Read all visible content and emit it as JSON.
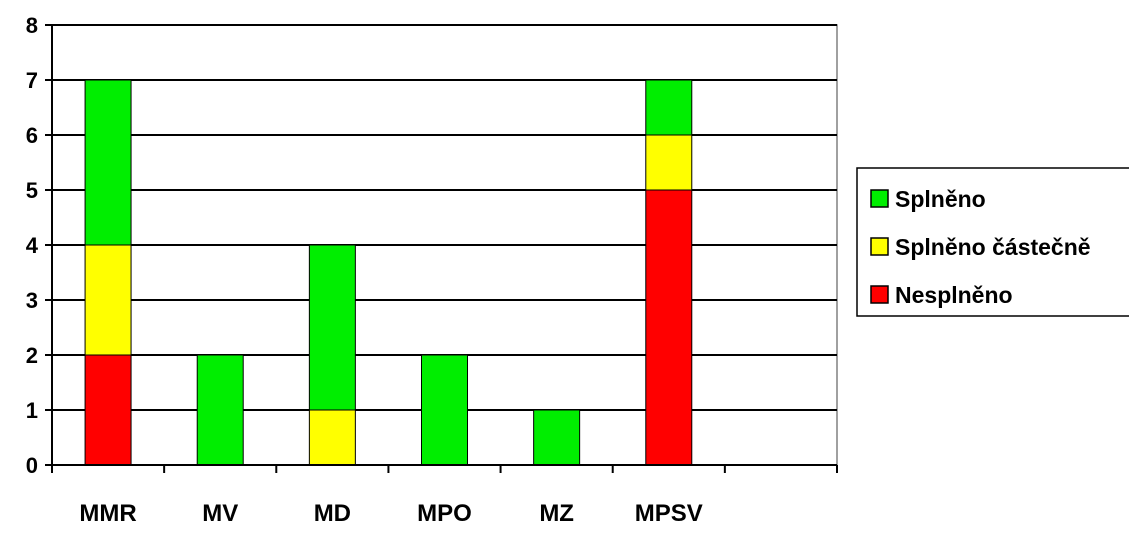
{
  "chart_data": {
    "type": "bar",
    "stacked": true,
    "categories": [
      "MMR",
      "MV",
      "MD",
      "MPO",
      "MZ",
      "MPSV",
      ""
    ],
    "series": [
      {
        "name": "Nesplněno",
        "color": "#ff0000",
        "values": [
          2,
          0,
          0,
          0,
          0,
          5,
          0
        ]
      },
      {
        "name": "Splněno částečně",
        "color": "#ffff00",
        "values": [
          2,
          0,
          1,
          0,
          0,
          1,
          0
        ]
      },
      {
        "name": "Splněno",
        "color": "#00ee00",
        "values": [
          3,
          2,
          3,
          2,
          1,
          1,
          0
        ]
      }
    ],
    "legend_order": [
      "Splněno",
      "Splněno částečně",
      "Nesplněno"
    ],
    "ylim": [
      0,
      8
    ],
    "yticks": [
      0,
      1,
      2,
      3,
      4,
      5,
      6,
      7,
      8
    ],
    "grid": true,
    "legend_position": "right",
    "plot_background": "#ffffff",
    "grid_color": "#000000"
  }
}
